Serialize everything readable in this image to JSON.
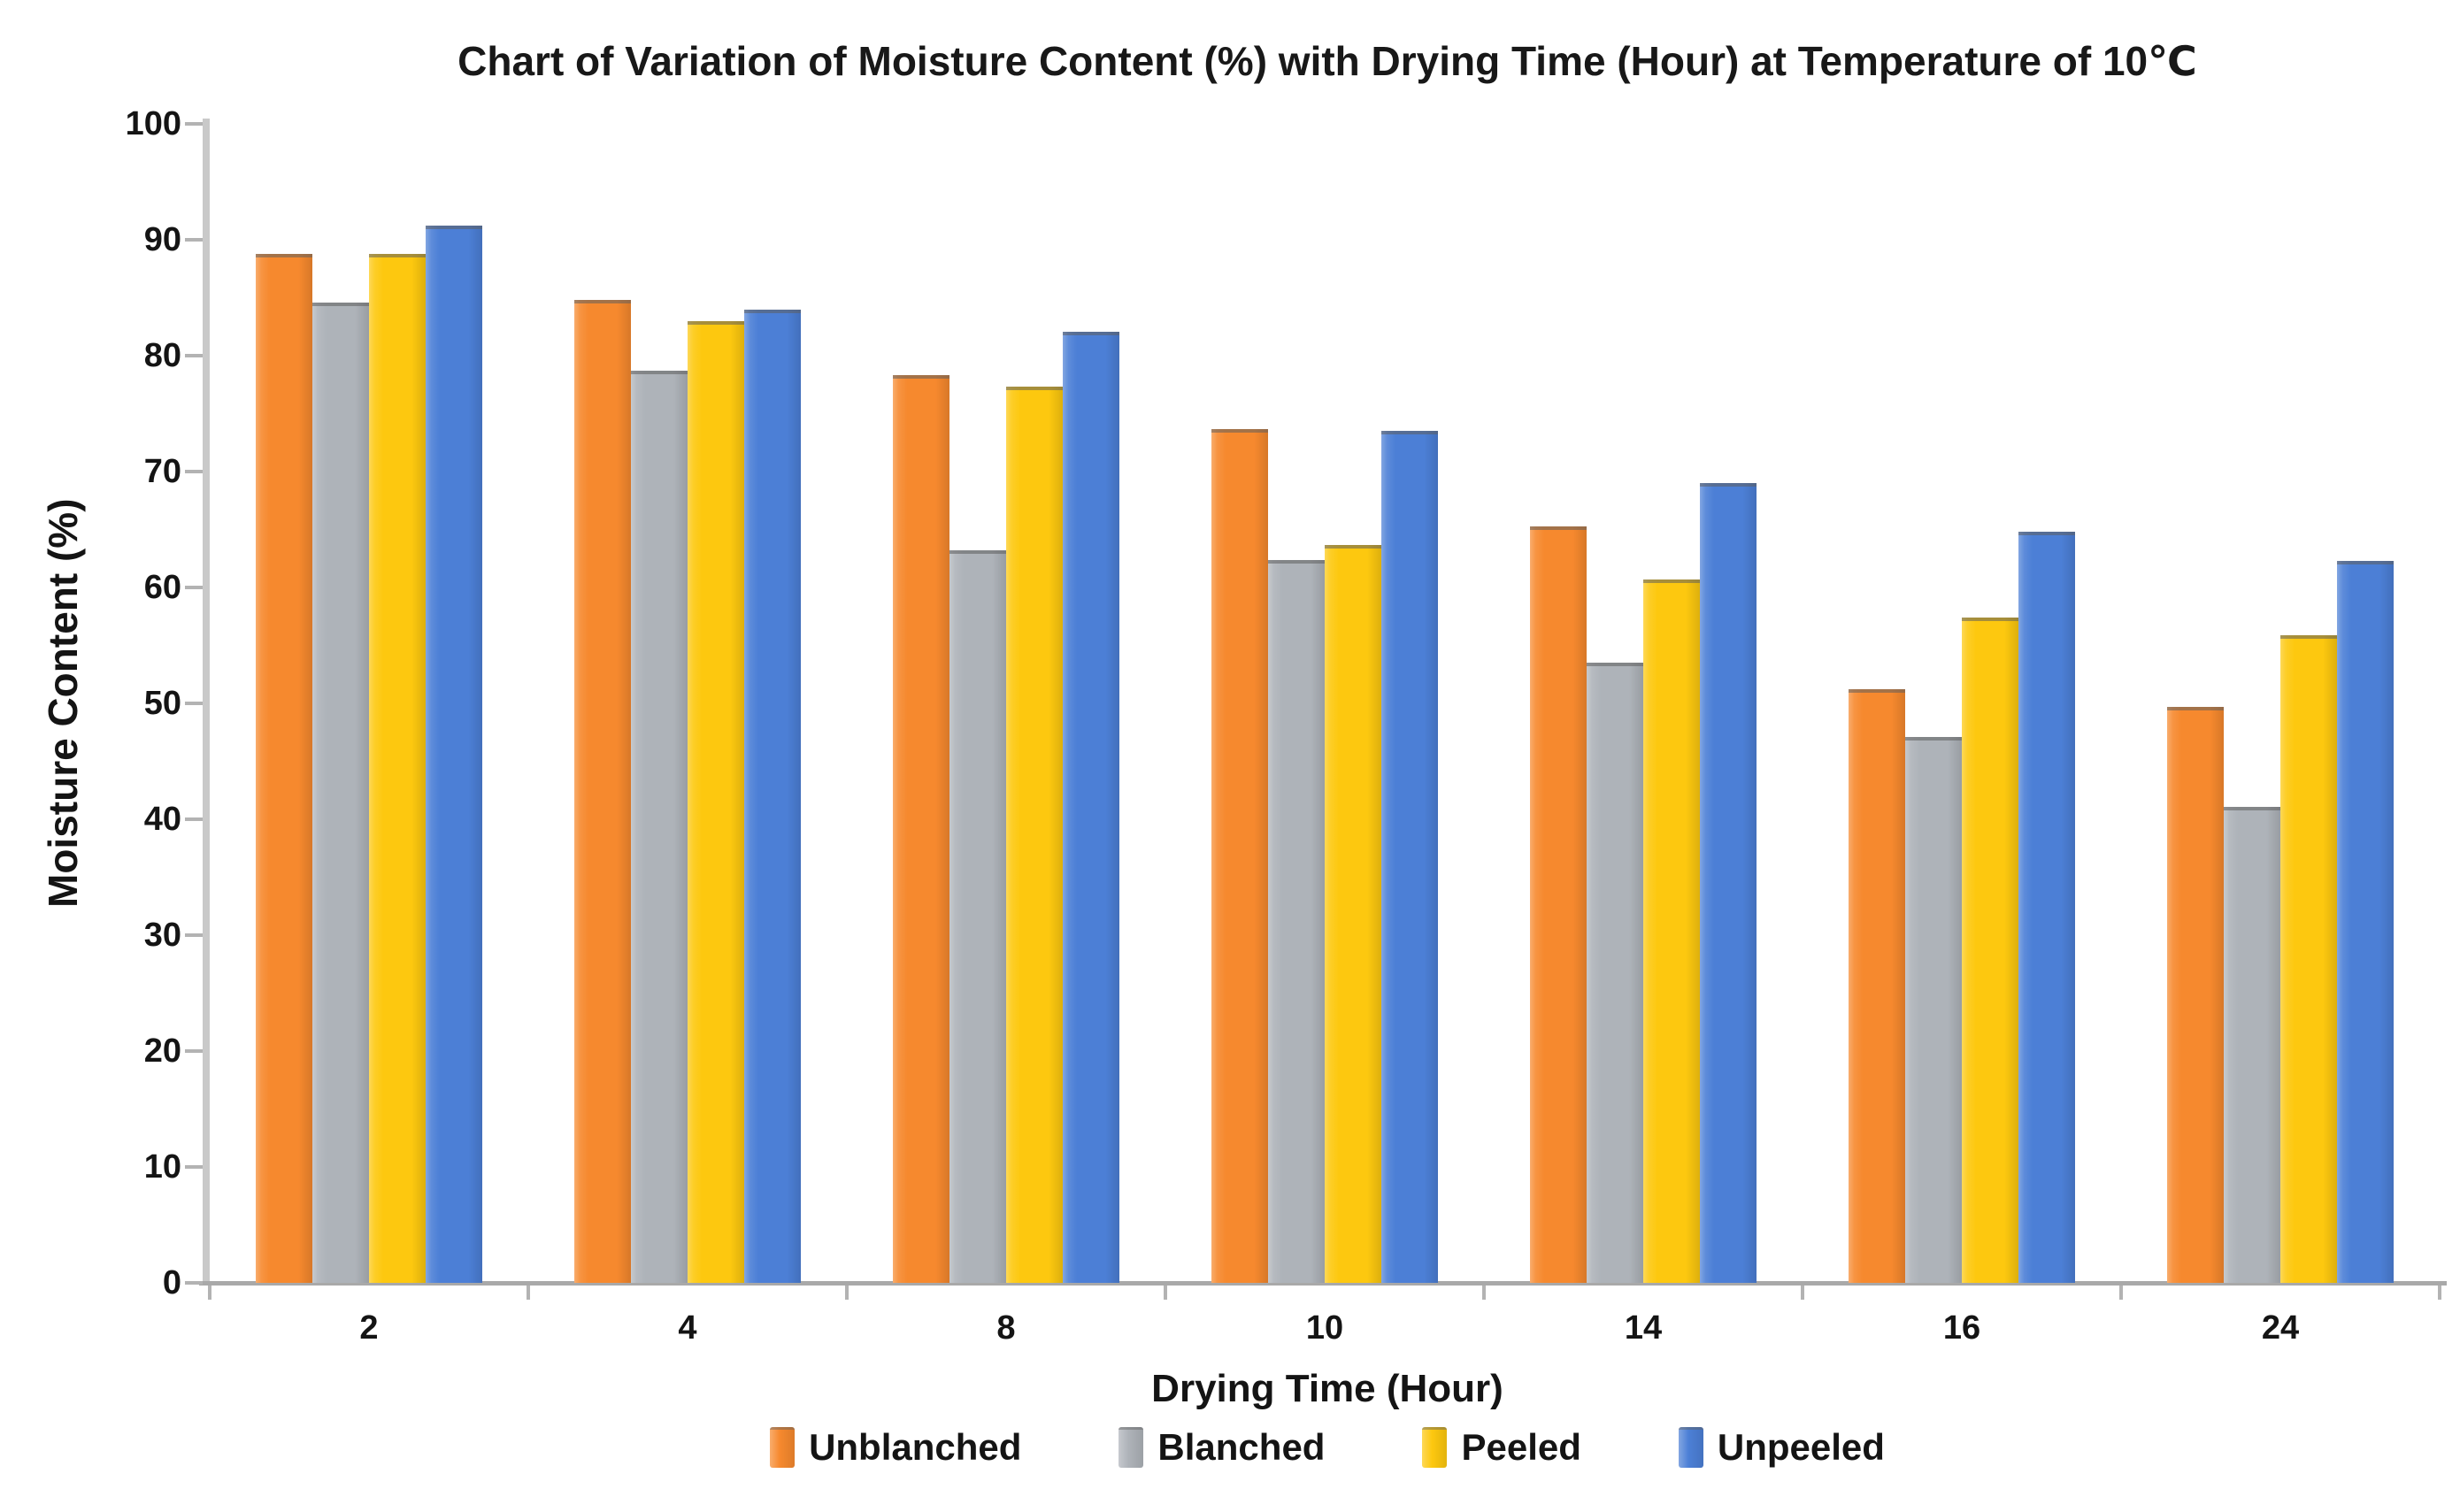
{
  "chart_data": {
    "type": "bar",
    "title": "Chart of Variation of Moisture Content (%) with Drying Time (Hour) at Temperature of 10℃",
    "xlabel": "Drying Time (Hour)",
    "ylabel": "Moisture Content (%)",
    "ylim": [
      0,
      100
    ],
    "ytick_step": 10,
    "grid": false,
    "legend_position": "bottom-center",
    "categories": [
      "2",
      "4",
      "8",
      "10",
      "14",
      "16",
      "24"
    ],
    "series": [
      {
        "name": "Unblanched",
        "color": "#F6892E",
        "values": [
          88.8,
          84.8,
          78.3,
          73.7,
          65.3,
          51.2,
          49.7
        ]
      },
      {
        "name": "Blanched",
        "color": "#AEB3B9",
        "values": [
          84.6,
          78.7,
          63.2,
          62.4,
          53.5,
          47.1,
          41.1
        ]
      },
      {
        "name": "Peeled",
        "color": "#FDC80F",
        "values": [
          88.8,
          83.0,
          77.3,
          63.7,
          60.7,
          57.4,
          55.9
        ]
      },
      {
        "name": "Unpeeled",
        "color": "#4C7FD6",
        "values": [
          91.2,
          84.0,
          82.1,
          73.5,
          69.0,
          64.8,
          62.3
        ]
      }
    ]
  }
}
